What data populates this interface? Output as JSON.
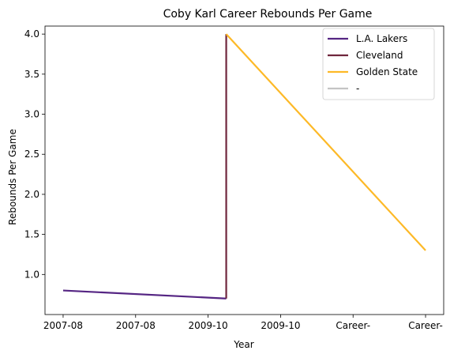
{
  "chart_data": {
    "type": "line",
    "title": "Coby Karl Career Rebounds Per Game",
    "xlabel": "Year",
    "ylabel": "Rebounds Per Game",
    "categories": [
      "2007-08",
      "2007-08",
      "2009-10",
      "2009-10",
      "Career-",
      "Career-"
    ],
    "ylim": [
      0.5,
      4.1
    ],
    "yticks": [
      "1.0",
      "1.5",
      "2.0",
      "2.5",
      "3.0",
      "3.5",
      "4.0"
    ],
    "grid": false,
    "legend_position": "top-right",
    "series": [
      {
        "name": "L.A. Lakers",
        "color": "#552583",
        "points": [
          [
            0,
            0.8
          ],
          [
            2.25,
            0.7
          ]
        ]
      },
      {
        "name": "Cleveland",
        "color": "#6F263D",
        "points": [
          [
            2.25,
            0.7
          ],
          [
            2.25,
            4.0
          ]
        ]
      },
      {
        "name": "Golden State",
        "color": "#FDB927",
        "points": [
          [
            2.25,
            4.0
          ],
          [
            5,
            1.3
          ]
        ]
      },
      {
        "name": "-",
        "color": "#C4C4C4",
        "points": []
      }
    ]
  }
}
